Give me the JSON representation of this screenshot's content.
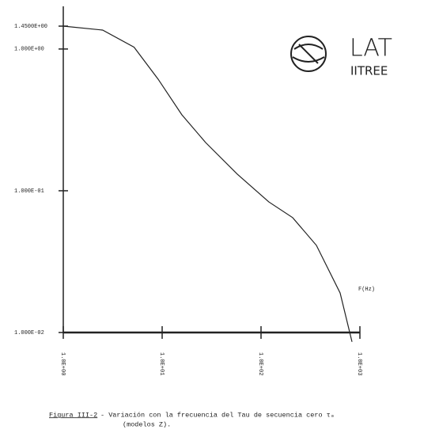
{
  "chart_data": {
    "type": "line",
    "xlabel": "F(Hz)",
    "x": [
      1,
      2.5,
      5.2,
      9.1,
      15.8,
      27.5,
      57.5,
      120,
      209,
      363,
      631,
      832
    ],
    "series": [
      {
        "color": "#222222",
        "values": [
          1.45,
          1.36,
          1.03,
          0.613,
          0.344,
          0.219,
          0.131,
          0.0834,
          0.0646,
          0.0412,
          0.019,
          0.0086
        ]
      }
    ],
    "xscale": "log",
    "yscale": "log",
    "xlim": [
      1,
      1000
    ],
    "ylim": [
      0.01,
      2
    ],
    "xticks": [
      {
        "value": 1,
        "label": "1.0E+00"
      },
      {
        "value": 10,
        "label": "1.0E+01"
      },
      {
        "value": 100,
        "label": "1.0E+02"
      },
      {
        "value": 1000,
        "label": "1.0E+03"
      }
    ],
    "yticks": [
      {
        "value": 1.45,
        "label": "1.4500E+00"
      },
      {
        "value": 1,
        "label": "1.000E+00"
      },
      {
        "value": 0.1,
        "label": "1.000E-01"
      },
      {
        "value": 0.01,
        "label": "1.000E-02"
      }
    ],
    "logo": [
      "LAT",
      "IITREE"
    ],
    "caption": {
      "label": "Figura III-2",
      "text": "- Variación con la frecuencia del Tau de secuencia cero τ₀",
      "text2": "(modelos Z)."
    }
  }
}
